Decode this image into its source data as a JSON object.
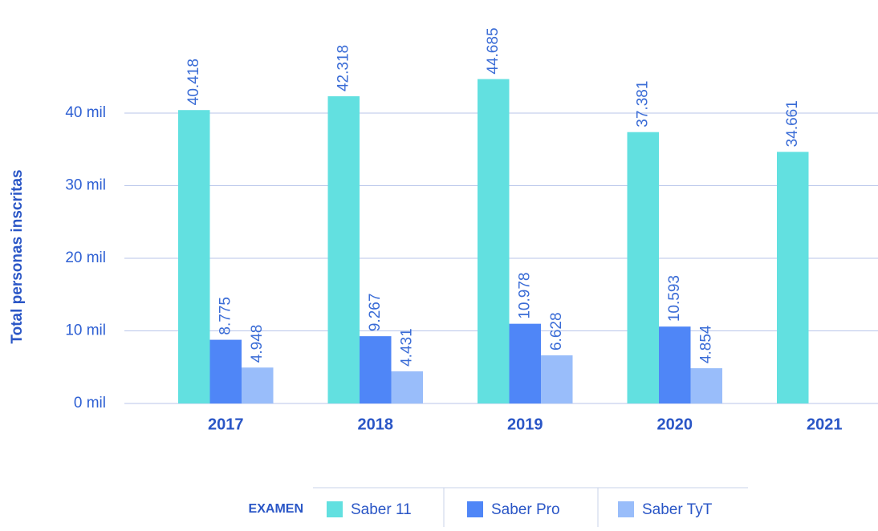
{
  "chart_data": {
    "type": "bar",
    "y_label": "Total personas inscritas",
    "legend_title": "EXAMEN",
    "categories": [
      "2017",
      "2018",
      "2019",
      "2020",
      "2021"
    ],
    "series": [
      {
        "name": "Saber 11",
        "color": "#62e0e0",
        "values": [
          40418,
          42318,
          44685,
          37381,
          34661
        ],
        "value_labels": [
          "40.418",
          "42.318",
          "44.685",
          "37.381",
          "34.661"
        ]
      },
      {
        "name": "Saber Pro",
        "color": "#4f86f7",
        "values": [
          8775,
          9267,
          10978,
          10593,
          null
        ],
        "value_labels": [
          "8.775",
          "9.267",
          "10.978",
          "10.593",
          null
        ]
      },
      {
        "name": "Saber TyT",
        "color": "#99bdfa",
        "values": [
          4948,
          4431,
          6628,
          4854,
          null
        ],
        "value_labels": [
          "4.948",
          "4.431",
          "6.628",
          "4.854",
          null
        ]
      }
    ],
    "ylim": [
      0,
      50000
    ],
    "yticks": [
      {
        "value": 0,
        "label": "0 mil"
      },
      {
        "value": 10000,
        "label": "10 mil"
      },
      {
        "value": 20000,
        "label": "20 mil"
      },
      {
        "value": 30000,
        "label": "30 mil"
      },
      {
        "value": 40000,
        "label": "40 mil"
      }
    ],
    "grid": true,
    "legend": "bottom"
  }
}
